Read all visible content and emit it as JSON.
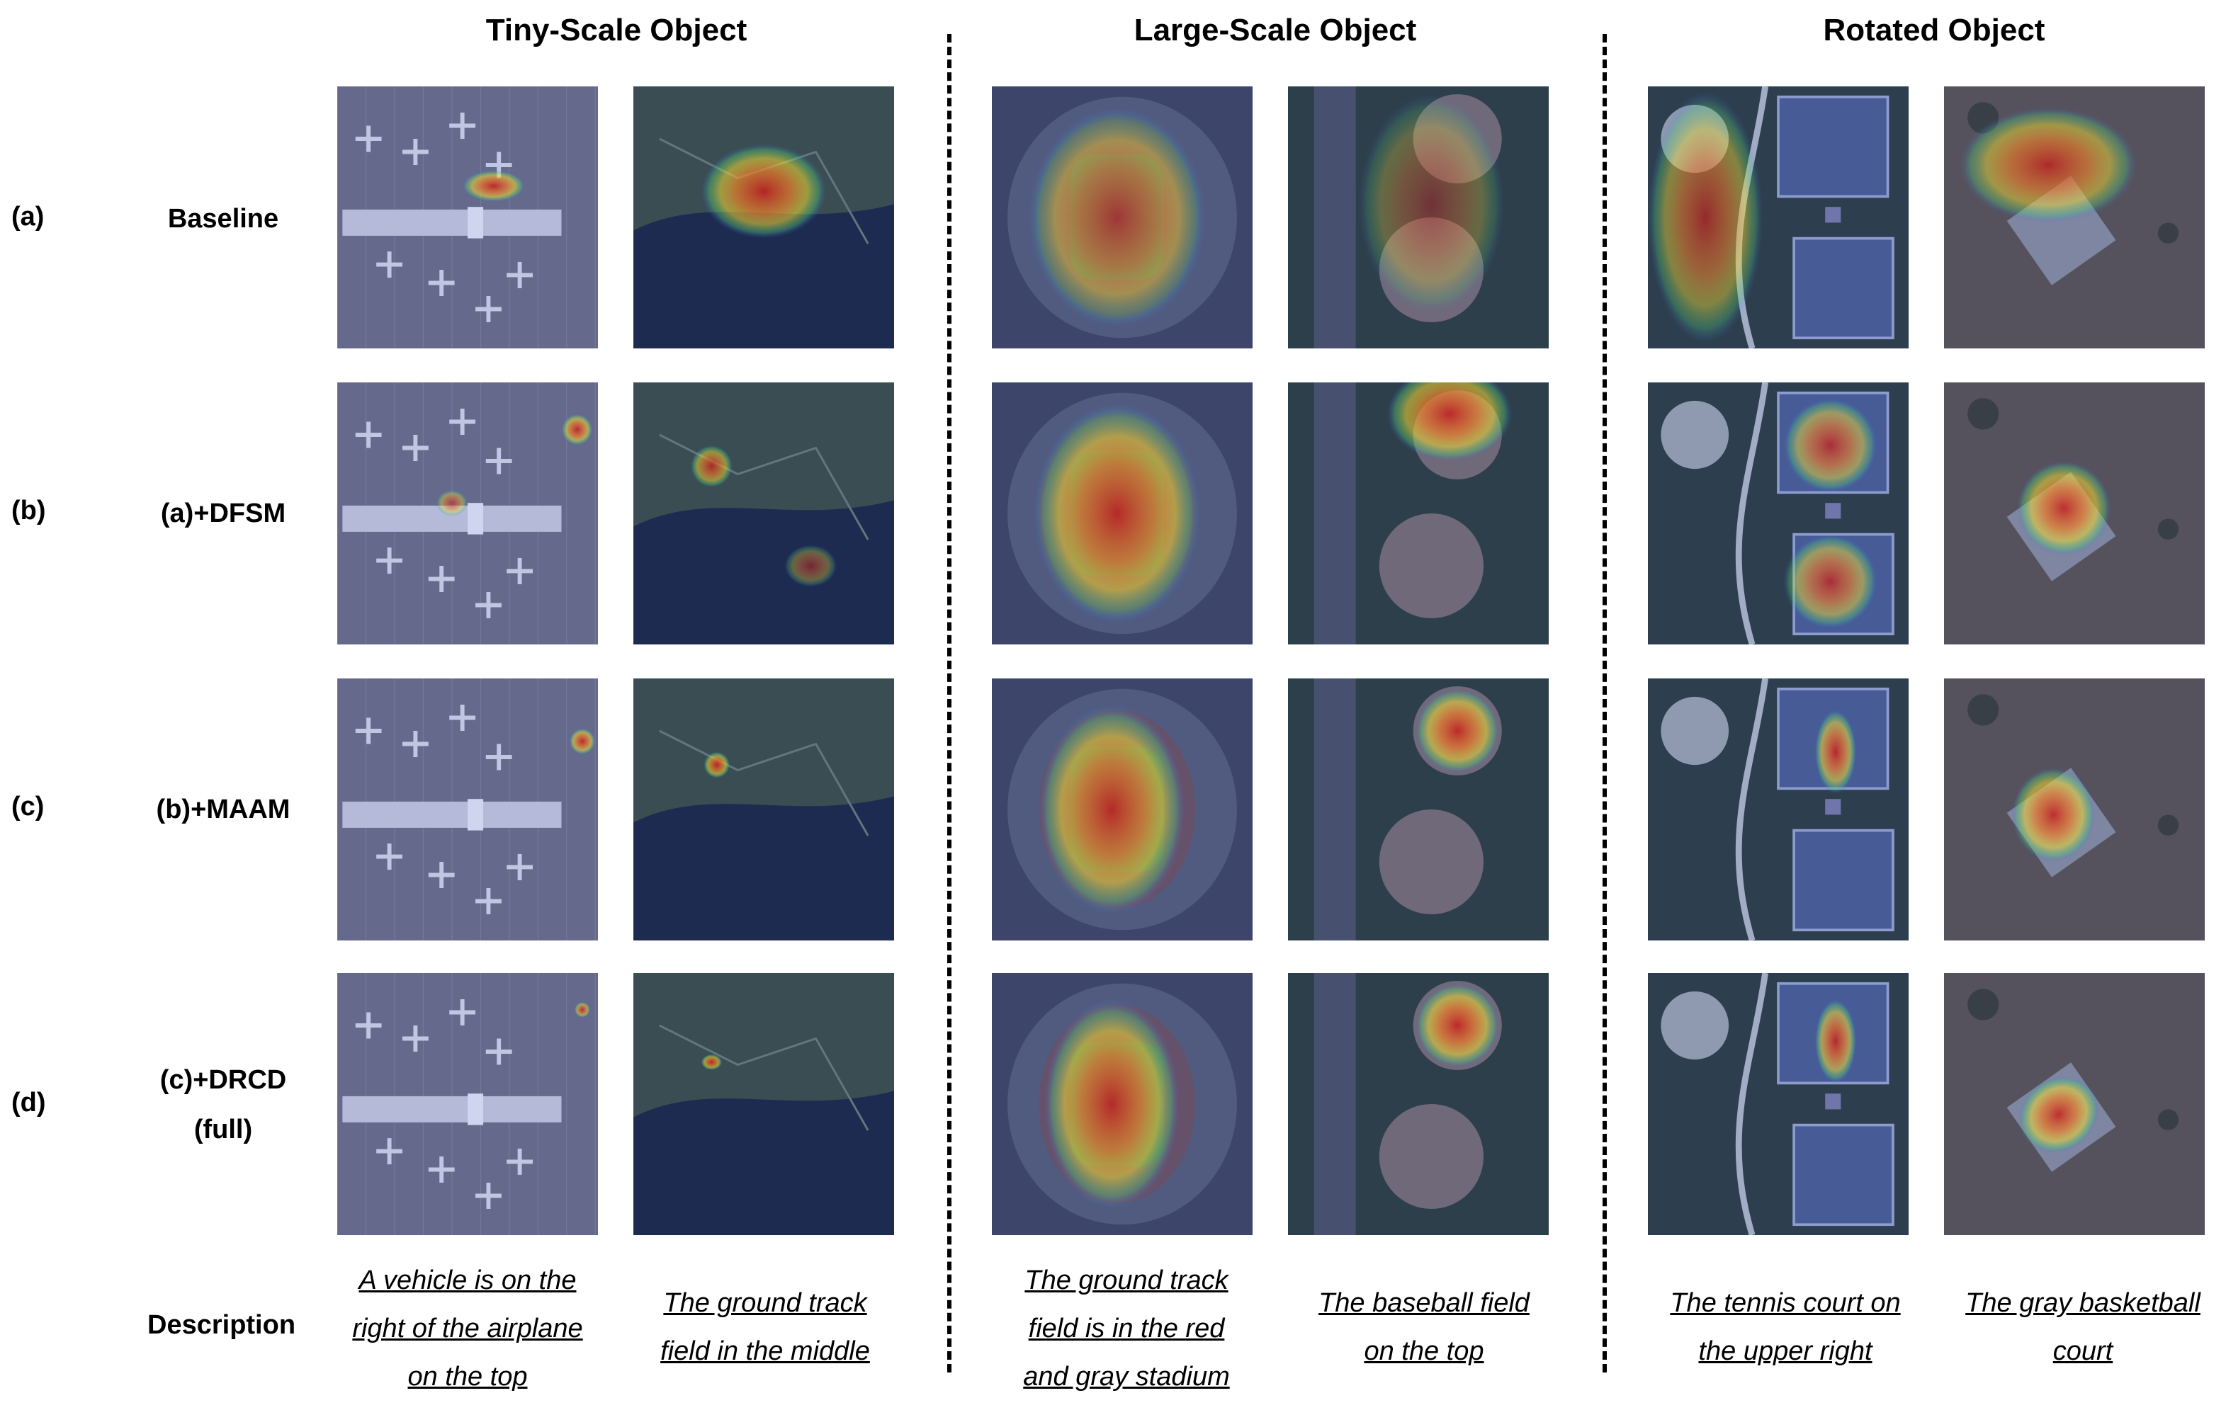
{
  "groups": [
    {
      "title": "Tiny-Scale Object"
    },
    {
      "title": "Large-Scale Object"
    },
    {
      "title": "Rotated Object"
    }
  ],
  "rows": [
    {
      "label": "(a)",
      "name": "Baseline"
    },
    {
      "label": "(b)",
      "name": "(a)+DFSM"
    },
    {
      "label": "(c)",
      "name": "(b)+MAAM"
    },
    {
      "label": "(d)",
      "name": "(c)+DRCD\n(full)"
    }
  ],
  "description_label": "Description",
  "columns": [
    {
      "scene": "airport",
      "caption": "A vehicle is on the\nright of the airplane\non the top"
    },
    {
      "scene": "rural",
      "caption": "The ground track\nfield in the middle"
    },
    {
      "scene": "stadium",
      "caption": "The ground track\nfield is in the red\nand gray stadium"
    },
    {
      "scene": "baseball",
      "caption": "The baseball field\non the top"
    },
    {
      "scene": "tennis",
      "caption": "The tennis court on\nthe upper right"
    },
    {
      "scene": "basketball",
      "caption": "The gray basketball\ncourt"
    }
  ],
  "colors": {
    "divider": "#000000",
    "heat_high": "#c81e1e",
    "heat_mid": "#f0dc32",
    "heat_low": "#3c64e6"
  }
}
